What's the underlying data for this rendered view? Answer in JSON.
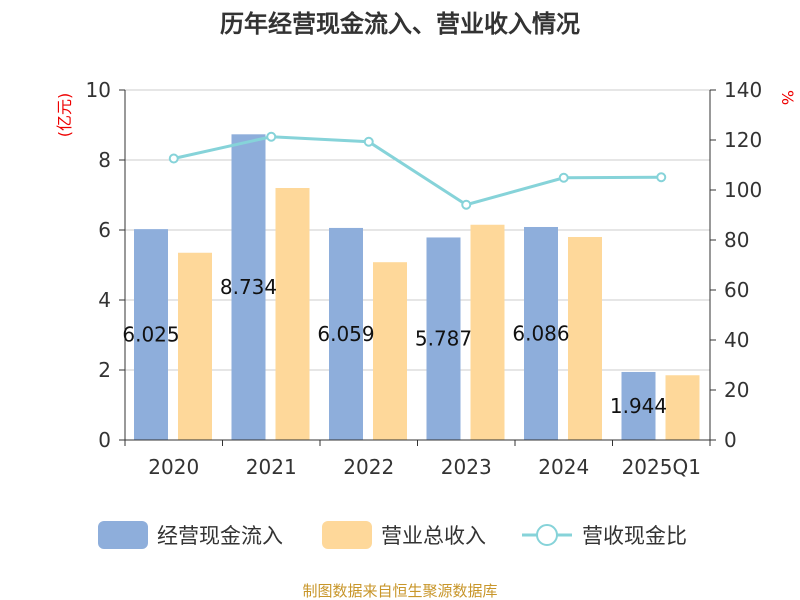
{
  "chart_data": {
    "type": "bar",
    "title": "历年经营现金流入、营业收入情况",
    "ylabel": "(亿元)",
    "ylabel_right": "%",
    "ylim": [
      0,
      10
    ],
    "ylim_right": [
      0,
      140
    ],
    "yticks": [
      0,
      2,
      4,
      6,
      8,
      10
    ],
    "yticks_right": [
      0,
      20,
      40,
      60,
      80,
      100,
      120,
      140
    ],
    "categories": [
      "2020",
      "2021",
      "2022",
      "2023",
      "2024",
      "2025Q1"
    ],
    "series": [
      {
        "name": "经营现金流入",
        "type": "bar",
        "color": "#8eaedb",
        "values": [
          6.025,
          8.734,
          6.059,
          5.787,
          6.086,
          1.944
        ],
        "labels": [
          "6.025",
          "8.734",
          "6.059",
          "5.787",
          "6.086",
          "1.944"
        ]
      },
      {
        "name": "营业总收入",
        "type": "bar",
        "color": "#fed89a",
        "values": [
          5.35,
          7.2,
          5.08,
          6.15,
          5.8,
          1.85
        ]
      },
      {
        "name": "营收现金比",
        "type": "line",
        "axis": "right",
        "color": "#86d3d9",
        "values": [
          112.6,
          121.3,
          119.3,
          94.1,
          104.9,
          105.1
        ]
      }
    ],
    "grid": true,
    "legend": "bottom",
    "source": "制图数据来自恒生聚源数据库"
  }
}
